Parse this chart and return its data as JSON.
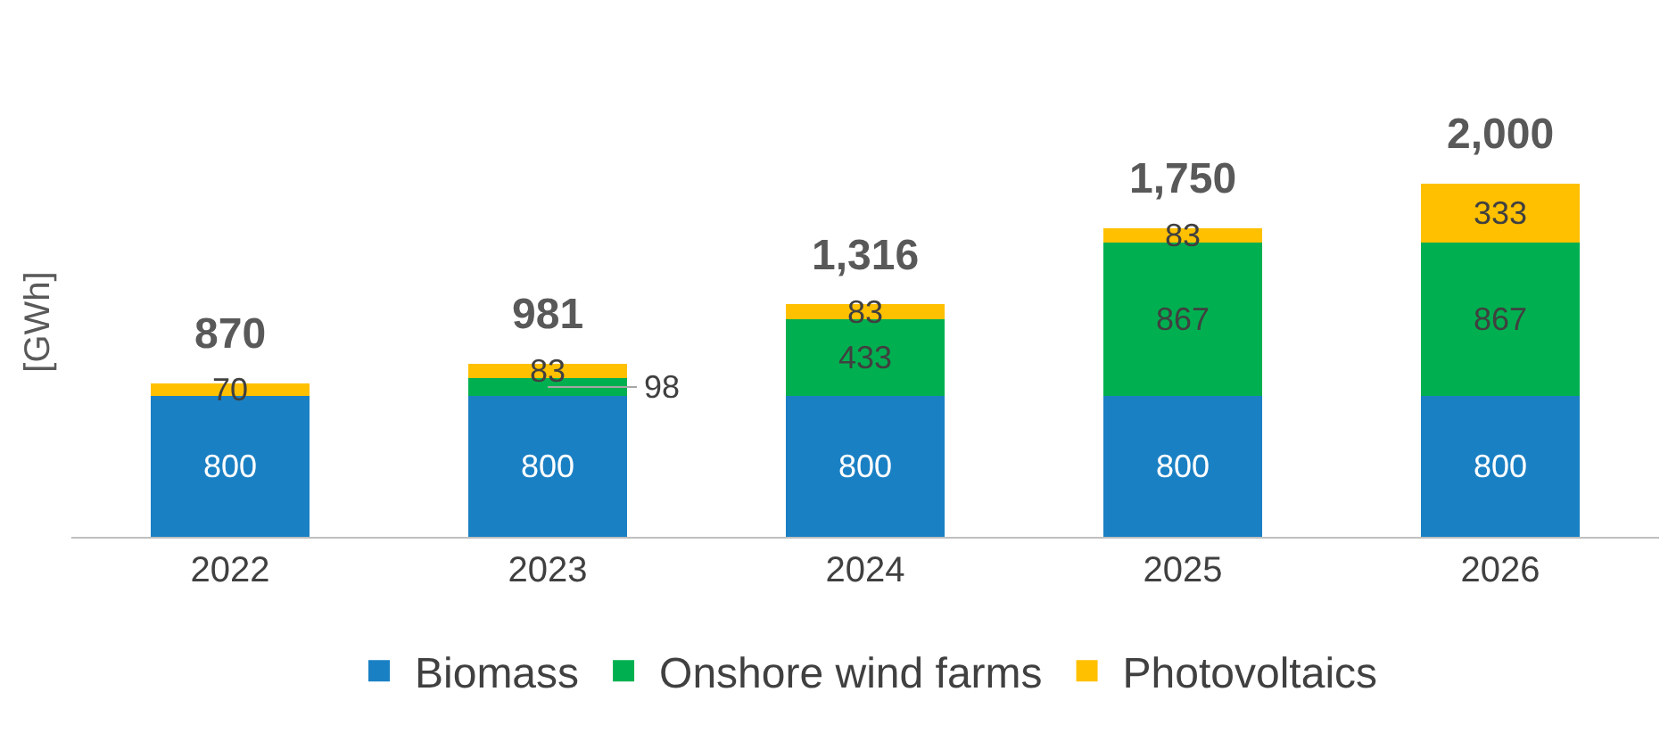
{
  "chart_data": {
    "type": "bar",
    "stacked": true,
    "ylabel": "[GWh]",
    "categories": [
      "2022",
      "2023",
      "2024",
      "2025",
      "2026"
    ],
    "series": [
      {
        "name": "Biomass",
        "color": "#1a80c4",
        "values": [
          800,
          800,
          800,
          800,
          800
        ],
        "value_labels": [
          "800",
          "800",
          "800",
          "800",
          "800"
        ]
      },
      {
        "name": "Onshore wind farms",
        "color": "#00b050",
        "values": [
          0,
          98,
          433,
          867,
          867
        ],
        "value_labels": [
          null,
          "98",
          "433",
          "867",
          "867"
        ]
      },
      {
        "name": "Photovoltaics",
        "color": "#ffc000",
        "values": [
          70,
          83,
          83,
          83,
          333
        ],
        "value_labels": [
          "70",
          "83",
          "83",
          "83",
          "333"
        ]
      }
    ],
    "totals": [
      "870",
      "981",
      "1,316",
      "1,750",
      "2,000"
    ],
    "grid": false,
    "legend": "bottom"
  }
}
